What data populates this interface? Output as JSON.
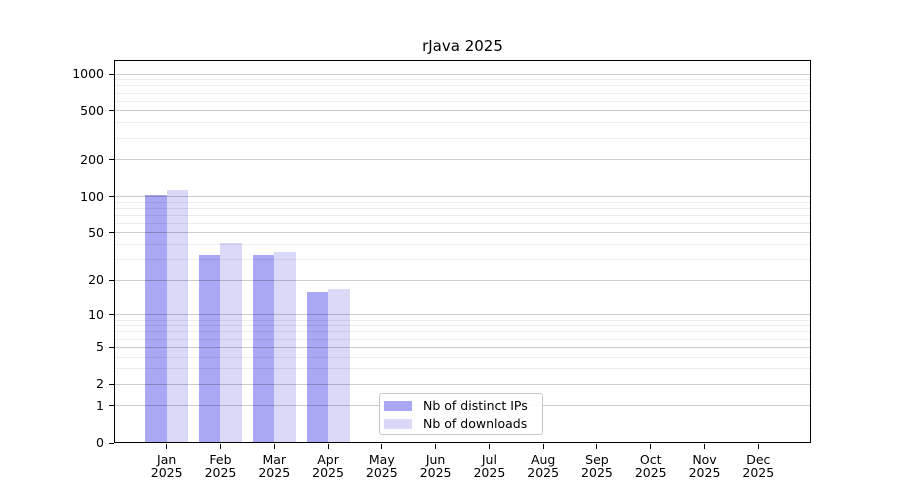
{
  "title": "rJava 2025",
  "colors": {
    "distinct_ips": "#a8a8f4",
    "downloads": "#dadaf8",
    "grid_major": "#cccccc",
    "grid_minor": "#ececec",
    "axis": "#000000",
    "legend_border": "#c9c9c9"
  },
  "legend": {
    "items": [
      {
        "label": "Nb of distinct IPs",
        "color": "#a8a8f4"
      },
      {
        "label": "Nb of downloads",
        "color": "#dadaf8"
      }
    ]
  },
  "chart_data": {
    "type": "bar",
    "title": "rJava 2025",
    "categories": [
      "Jan",
      "Feb",
      "Mar",
      "Apr",
      "May",
      "Jun",
      "Jul",
      "Aug",
      "Sep",
      "Oct",
      "Nov",
      "Dec"
    ],
    "x_sublabel": "2025",
    "series": [
      {
        "name": "Nb of distinct IPs",
        "color": "#a8a8f4",
        "values": [
          103,
          33,
          33,
          16,
          0,
          0,
          0,
          0,
          0,
          0,
          0,
          0
        ]
      },
      {
        "name": "Nb of downloads",
        "color": "#dadaf8",
        "values": [
          114,
          41,
          35,
          17,
          0,
          0,
          0,
          0,
          0,
          0,
          0,
          0
        ]
      }
    ],
    "xlabel": "",
    "ylabel": "",
    "y_axis": {
      "scale": "log1p",
      "major_ticks": [
        0,
        1,
        2,
        5,
        10,
        20,
        50,
        100,
        200,
        500,
        1000
      ],
      "minor_ticks": [
        3,
        4,
        6,
        7,
        8,
        9,
        30,
        40,
        60,
        70,
        80,
        90,
        300,
        400,
        600,
        700,
        800,
        900
      ],
      "ylim": [
        0,
        1300
      ]
    },
    "grid": true,
    "legend_position": "lower center"
  }
}
